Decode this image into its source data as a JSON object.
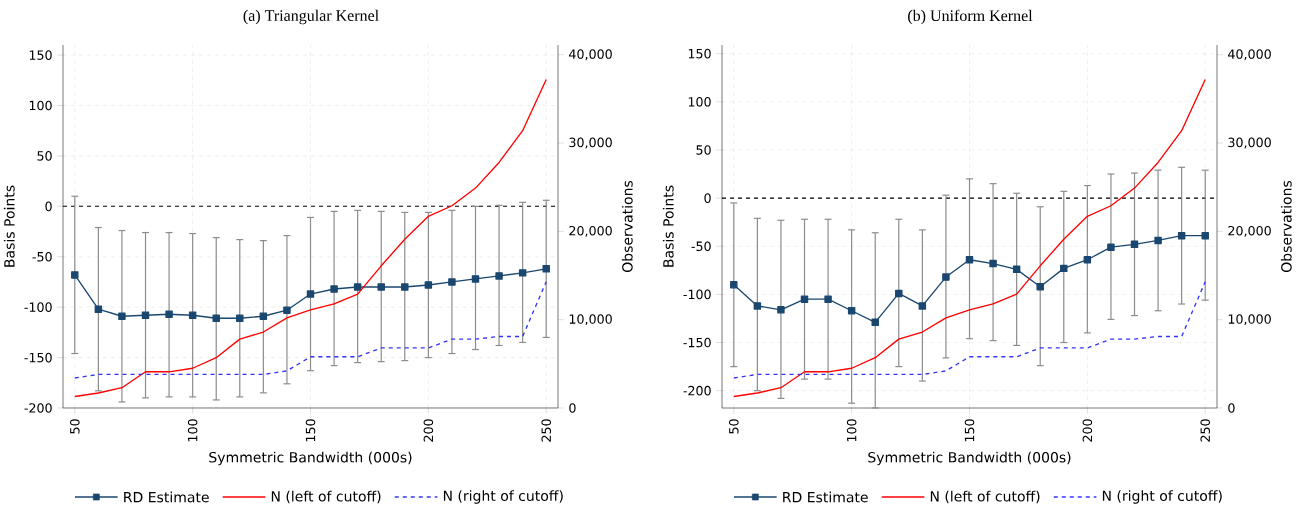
{
  "chart_data": [
    {
      "type": "line",
      "title": "(a) Triangular Kernel",
      "xlabel": "Symmetric Bandwidth (000s)",
      "ylabel": "Basis Points",
      "y2label": "Observations",
      "x": [
        50,
        60,
        70,
        80,
        90,
        100,
        110,
        120,
        130,
        140,
        150,
        160,
        170,
        180,
        190,
        200,
        210,
        220,
        230,
        240,
        250
      ],
      "series": [
        {
          "name": "RD Estimate",
          "color": "#1a476f",
          "marker": "square",
          "line_style": "solid",
          "values": [
            -68,
            -102,
            -109,
            -108,
            -107,
            -108,
            -111,
            -111,
            -109,
            -103,
            -87,
            -82,
            -80,
            -80,
            -80,
            -78,
            -75,
            -72,
            -69,
            -66,
            -62
          ],
          "errors": [
            [
              -146,
              10
            ],
            [
              -183,
              -21
            ],
            [
              -194,
              -24
            ],
            [
              -190,
              -26
            ],
            [
              -189,
              -26
            ],
            [
              -189,
              -27
            ],
            [
              -192,
              -31
            ],
            [
              -189,
              -33
            ],
            [
              -185,
              -34
            ],
            [
              -176,
              -29
            ],
            [
              -163,
              -11
            ],
            [
              -158,
              -5
            ],
            [
              -155,
              -4
            ],
            [
              -154,
              -5
            ],
            [
              -153,
              -6
            ],
            [
              -150,
              -6
            ],
            [
              -146,
              -4
            ],
            [
              -142,
              0
            ],
            [
              -138,
              1
            ],
            [
              -135,
              4
            ],
            [
              -130,
              6
            ]
          ]
        },
        {
          "name": "N (left of cutoff)",
          "color": "#ff0000",
          "marker": "none",
          "line_style": "solid",
          "axis": "y2",
          "values": [
            1300,
            1700,
            2300,
            4100,
            4100,
            4500,
            5700,
            7800,
            8600,
            10200,
            11100,
            11800,
            12900,
            16100,
            19100,
            21700,
            22900,
            24900,
            27800,
            31400,
            37200
          ]
        },
        {
          "name": "N (right of cutoff)",
          "color": "#3333ff",
          "marker": "none",
          "line_style": "dashed",
          "axis": "y2",
          "values": [
            3400,
            3800,
            3800,
            3800,
            3800,
            3800,
            3800,
            3800,
            3800,
            4200,
            5800,
            5800,
            5800,
            6800,
            6800,
            6800,
            7800,
            7800,
            8100,
            8100,
            14300
          ]
        }
      ],
      "xlim": [
        45,
        255
      ],
      "xticks": [
        50,
        100,
        150,
        200,
        250
      ],
      "ylim": [
        -200,
        160
      ],
      "yticks": [
        -200,
        -150,
        -100,
        -50,
        0,
        50,
        100,
        150
      ],
      "y2lim": [
        0,
        41100
      ],
      "y2ticks": [
        0,
        {
          "value": 10000,
          "label": "10,000"
        },
        {
          "value": 20000,
          "label": "20,000"
        },
        {
          "value": 30000,
          "label": "30,000"
        },
        {
          "value": 40000,
          "label": "40,000"
        }
      ],
      "ref_lines": [
        {
          "axis": "y",
          "value": 0,
          "color": "#000000",
          "line_style": "dashed"
        }
      ],
      "grid": true,
      "legend": "bottom"
    },
    {
      "type": "line",
      "title": "(b) Uniform Kernel",
      "xlabel": "Symmetric Bandwidth (000s)",
      "ylabel": "Basis Points",
      "y2label": "Observations",
      "x": [
        50,
        60,
        70,
        80,
        90,
        100,
        110,
        120,
        130,
        140,
        150,
        160,
        170,
        180,
        190,
        200,
        210,
        220,
        230,
        240,
        250
      ],
      "series": [
        {
          "name": "RD Estimate",
          "color": "#1a476f",
          "marker": "square",
          "line_style": "solid",
          "values": [
            -90,
            -112,
            -116,
            -105,
            -105,
            -117,
            -129,
            -99,
            -112,
            -82,
            -64,
            -68,
            -74,
            -92,
            -73,
            -64,
            -51,
            -48,
            -44,
            -39,
            -39
          ],
          "errors": [
            [
              -175,
              -5
            ],
            [
              -200,
              -21
            ],
            [
              -208,
              -23
            ],
            [
              -188,
              -22
            ],
            [
              -188,
              -22
            ],
            [
              -213,
              -33
            ],
            [
              -218,
              -36
            ],
            [
              -175,
              -22
            ],
            [
              -190,
              -33
            ],
            [
              -166,
              3
            ],
            [
              -146,
              20
            ],
            [
              -148,
              15
            ],
            [
              -153,
              5
            ],
            [
              -174,
              -9
            ],
            [
              -150,
              7
            ],
            [
              -140,
              13
            ],
            [
              -126,
              25
            ],
            [
              -122,
              26
            ],
            [
              -117,
              29
            ],
            [
              -110,
              32
            ],
            [
              -106,
              29
            ]
          ]
        },
        {
          "name": "N (left of cutoff)",
          "color": "#ff0000",
          "marker": "none",
          "line_style": "solid",
          "axis": "y2",
          "values": [
            1300,
            1700,
            2300,
            4100,
            4100,
            4500,
            5700,
            7800,
            8600,
            10200,
            11100,
            11800,
            12900,
            16100,
            19100,
            21700,
            22900,
            24900,
            27800,
            31400,
            37200
          ]
        },
        {
          "name": "N (right of cutoff)",
          "color": "#3333ff",
          "marker": "none",
          "line_style": "dashed",
          "axis": "y2",
          "values": [
            3400,
            3800,
            3800,
            3800,
            3800,
            3800,
            3800,
            3800,
            3800,
            4200,
            5800,
            5800,
            5800,
            6800,
            6800,
            6800,
            7800,
            7800,
            8100,
            8100,
            14300
          ]
        }
      ],
      "xlim": [
        45,
        255
      ],
      "xticks": [
        50,
        100,
        150,
        200,
        250
      ],
      "ylim": [
        -218,
        159
      ],
      "yticks": [
        -200,
        -150,
        -100,
        -50,
        0,
        50,
        100,
        150
      ],
      "y2lim": [
        0,
        41100
      ],
      "y2ticks": [
        0,
        {
          "value": 10000,
          "label": "10,000"
        },
        {
          "value": 20000,
          "label": "20,000"
        },
        {
          "value": 30000,
          "label": "30,000"
        },
        {
          "value": 40000,
          "label": "40,000"
        }
      ],
      "ref_lines": [
        {
          "axis": "y",
          "value": 0,
          "color": "#000000",
          "line_style": "dashed"
        }
      ],
      "grid": true,
      "legend": "bottom"
    }
  ]
}
